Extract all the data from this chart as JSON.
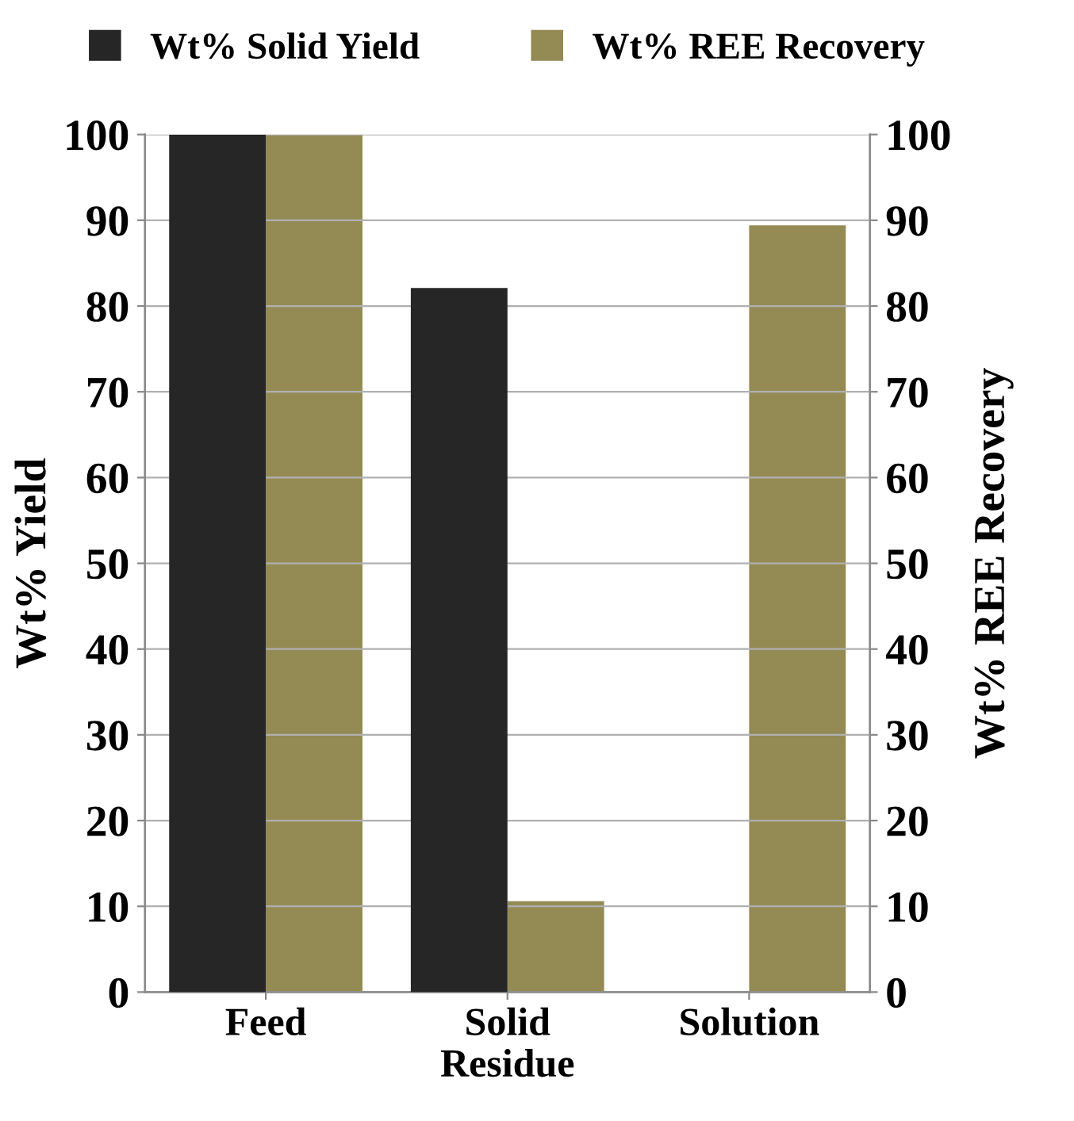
{
  "chart_data": {
    "type": "bar",
    "ylabel": "Wt% Yield",
    "y2label": "Wt% REE Recovery",
    "categories": [
      "Feed",
      "Solid\nResidue",
      "Solution"
    ],
    "series": [
      {
        "name": "Wt% Solid Yield",
        "color": "#262626",
        "values": [
          100,
          82.1,
          null
        ]
      },
      {
        "name": "Wt% REE Recovery",
        "color": "#948a54",
        "values": [
          100,
          10.6,
          89.4
        ],
        "axis": "y2"
      }
    ],
    "ylim": [
      0,
      100
    ],
    "yticks": [
      0,
      10,
      20,
      30,
      40,
      50,
      60,
      70,
      80,
      90,
      100
    ],
    "y2lim": [
      0,
      100
    ],
    "y2ticks": [
      0,
      10,
      20,
      30,
      40,
      50,
      60,
      70,
      80,
      90,
      100
    ],
    "grid": "y",
    "legend": "top"
  }
}
